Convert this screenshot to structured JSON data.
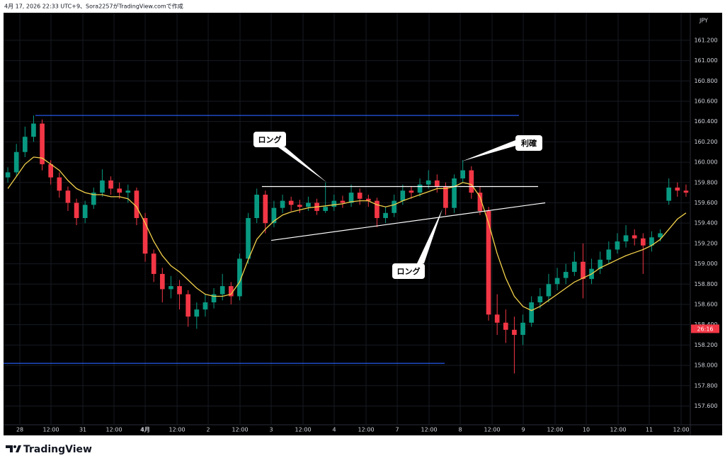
{
  "header": "4月 17, 2026 22:33 UTC+9、Sora2257がTradingView.comで作成",
  "footer": {
    "brand": "TradingView"
  },
  "chart_data": {
    "type": "candlestick",
    "currency": "JPY",
    "countdown": "26:16",
    "countdown_price": 158.36,
    "up_color": "#089981",
    "down_color": "#f23645",
    "grid": true,
    "ylim": [
      157.45,
      161.45
    ],
    "yticks": [
      {
        "value": 157.6,
        "label": "157.600"
      },
      {
        "value": 157.8,
        "label": "157.800"
      },
      {
        "value": 158.0,
        "label": "158.000"
      },
      {
        "value": 158.2,
        "label": "158.200"
      },
      {
        "value": 158.4,
        "label": "158.400"
      },
      {
        "value": 158.6,
        "label": "158.600"
      },
      {
        "value": 158.8,
        "label": "158.800"
      },
      {
        "value": 159.0,
        "label": "159.000"
      },
      {
        "value": 159.2,
        "label": "159.200"
      },
      {
        "value": 159.4,
        "label": "159.400"
      },
      {
        "value": 159.6,
        "label": "159.600"
      },
      {
        "value": 159.8,
        "label": "159.800"
      },
      {
        "value": 160.0,
        "label": "160.000"
      },
      {
        "value": 160.2,
        "label": "160.200"
      },
      {
        "value": 160.4,
        "label": "160.400"
      },
      {
        "value": 160.6,
        "label": "160.600"
      },
      {
        "value": 160.8,
        "label": "160.800"
      },
      {
        "value": 161.0,
        "label": "161.000"
      },
      {
        "value": 161.2,
        "label": "161.200"
      }
    ],
    "xlim": [
      -0.5,
      79.5
    ],
    "xticks": [
      {
        "value": 1.4,
        "label": "28"
      },
      {
        "value": 5.03,
        "label": "12:00"
      },
      {
        "value": 8.74,
        "label": "31"
      },
      {
        "value": 12.37,
        "label": "12:00"
      },
      {
        "value": 16.0,
        "label": "4月"
      },
      {
        "value": 19.71,
        "label": "12:00"
      },
      {
        "value": 23.34,
        "label": "2"
      },
      {
        "value": 27.05,
        "label": "12:00"
      },
      {
        "value": 30.68,
        "label": "3"
      },
      {
        "value": 34.39,
        "label": "12:00"
      },
      {
        "value": 38.02,
        "label": "4"
      },
      {
        "value": 41.73,
        "label": "12:00"
      },
      {
        "value": 45.36,
        "label": "7"
      },
      {
        "value": 49.07,
        "label": "12:00"
      },
      {
        "value": 52.7,
        "label": "8"
      },
      {
        "value": 56.41,
        "label": "12:00"
      },
      {
        "value": 60.04,
        "label": "9"
      },
      {
        "value": 63.75,
        "label": "12:00"
      },
      {
        "value": 67.38,
        "label": "10"
      },
      {
        "value": 71.09,
        "label": "12:00"
      },
      {
        "value": 74.72,
        "label": "11"
      },
      {
        "value": 78.43,
        "label": "12:00"
      }
    ],
    "open": [
      159.85,
      159.9,
      160.1,
      160.25,
      160.38,
      159.98,
      159.85,
      159.72,
      159.6,
      159.45,
      159.58,
      159.7,
      159.82,
      159.74,
      159.7,
      159.72,
      159.45,
      159.1,
      158.9,
      158.75,
      158.78,
      158.7,
      158.48,
      158.55,
      158.62,
      158.7,
      158.78,
      158.68,
      159.05,
      159.45,
      159.68,
      159.4,
      159.55,
      159.62,
      159.58,
      159.56,
      159.6,
      159.52,
      159.56,
      159.62,
      159.6,
      159.7,
      159.64,
      159.62,
      159.45,
      159.5,
      159.62,
      159.72,
      159.7,
      159.78,
      159.82,
      159.76,
      159.55,
      159.84,
      159.92,
      159.7,
      159.52,
      158.5,
      158.42,
      158.35,
      158.3,
      158.42,
      158.62,
      158.68,
      158.8,
      158.86,
      158.92,
      159.02,
      158.85,
      158.95,
      159.04,
      159.14,
      159.22,
      159.28,
      159.25,
      159.18,
      159.26,
      159.62,
      159.75,
      159.72
    ],
    "high": [
      159.95,
      160.18,
      160.35,
      160.46,
      160.42,
      160.02,
      159.9,
      159.76,
      159.64,
      159.62,
      159.75,
      159.93,
      159.86,
      159.8,
      159.78,
      159.75,
      159.5,
      159.14,
      158.96,
      158.88,
      158.84,
      158.74,
      158.62,
      158.7,
      158.76,
      158.9,
      158.82,
      159.1,
      159.5,
      159.74,
      159.72,
      159.62,
      159.68,
      159.66,
      159.63,
      159.66,
      159.64,
      159.8,
      159.68,
      159.67,
      159.78,
      159.74,
      159.68,
      159.65,
      159.56,
      159.68,
      159.78,
      159.76,
      159.84,
      159.92,
      159.88,
      159.8,
      159.88,
      160.02,
      159.96,
      159.76,
      159.56,
      158.7,
      158.55,
      158.48,
      158.5,
      158.68,
      158.76,
      158.9,
      158.96,
      159.0,
      159.12,
      159.2,
      159.05,
      159.12,
      159.22,
      159.3,
      159.38,
      159.34,
      159.3,
      159.32,
      159.34,
      159.84,
      159.8,
      159.78
    ],
    "low": [
      159.8,
      159.86,
      160.05,
      160.2,
      159.92,
      159.78,
      159.65,
      159.52,
      159.38,
      159.4,
      159.54,
      159.66,
      159.68,
      159.64,
      159.6,
      159.38,
      159.02,
      158.82,
      158.62,
      158.66,
      158.55,
      158.38,
      158.36,
      158.48,
      158.56,
      158.64,
      158.6,
      158.64,
      159.0,
      159.4,
      159.3,
      159.36,
      159.5,
      159.52,
      159.5,
      159.52,
      159.48,
      159.5,
      159.52,
      159.55,
      159.56,
      159.58,
      159.56,
      159.36,
      159.4,
      159.46,
      159.58,
      159.64,
      159.66,
      159.74,
      159.7,
      159.48,
      159.5,
      159.8,
      159.64,
      159.48,
      158.44,
      158.3,
      158.22,
      157.92,
      158.2,
      158.38,
      158.56,
      158.62,
      158.74,
      158.8,
      158.88,
      158.66,
      158.8,
      158.9,
      159.0,
      159.1,
      159.16,
      159.18,
      158.9,
      159.12,
      159.22,
      159.58,
      159.66,
      159.66
    ],
    "close": [
      159.9,
      160.1,
      160.25,
      160.38,
      159.98,
      159.85,
      159.72,
      159.6,
      159.45,
      159.58,
      159.7,
      159.82,
      159.74,
      159.7,
      159.72,
      159.45,
      159.1,
      158.9,
      158.75,
      158.78,
      158.7,
      158.48,
      158.55,
      158.62,
      158.7,
      158.78,
      158.68,
      159.05,
      159.45,
      159.68,
      159.4,
      159.55,
      159.62,
      159.58,
      159.56,
      159.6,
      159.52,
      159.56,
      159.62,
      159.6,
      159.7,
      159.64,
      159.62,
      159.45,
      159.5,
      159.62,
      159.72,
      159.7,
      159.78,
      159.82,
      159.76,
      159.55,
      159.84,
      159.92,
      159.7,
      159.52,
      158.5,
      158.42,
      158.35,
      158.3,
      158.42,
      158.62,
      158.68,
      158.8,
      158.86,
      158.92,
      159.02,
      158.85,
      158.95,
      159.04,
      159.14,
      159.22,
      159.28,
      159.25,
      159.18,
      159.26,
      159.3,
      159.75,
      159.72,
      159.7
    ],
    "ma": {
      "color": "#f2d04a",
      "values": [
        159.74,
        159.86,
        159.98,
        160.05,
        160.04,
        159.98,
        159.92,
        159.82,
        159.74,
        159.7,
        159.68,
        159.68,
        159.66,
        159.66,
        159.64,
        159.56,
        159.4,
        159.22,
        159.08,
        158.98,
        158.92,
        158.84,
        158.76,
        158.7,
        158.68,
        158.68,
        158.7,
        158.82,
        159.04,
        159.24,
        159.34,
        159.42,
        159.48,
        159.51,
        159.53,
        159.55,
        159.56,
        159.57,
        159.58,
        159.59,
        159.61,
        159.62,
        159.62,
        159.58,
        159.56,
        159.58,
        159.62,
        159.65,
        159.68,
        159.71,
        159.74,
        159.74,
        159.76,
        159.8,
        159.78,
        159.66,
        159.4,
        159.1,
        158.86,
        158.68,
        158.58,
        158.54,
        158.58,
        158.64,
        158.7,
        158.76,
        158.82,
        158.86,
        158.9,
        158.96,
        159.0,
        159.04,
        159.08,
        159.11,
        159.14,
        159.18,
        159.24,
        159.34,
        159.44,
        159.5
      ]
    },
    "lines": [
      {
        "color": "#2962ff",
        "x": [
          3.21,
          59.54
        ],
        "y": [
          160.46,
          160.46
        ]
      },
      {
        "color": "#2962ff",
        "x": [
          -0.5,
          50.88
        ],
        "y": [
          158.02,
          158.02
        ]
      },
      {
        "color": "#ffffff",
        "x": [
          29.6,
          61.77
        ],
        "y": [
          159.76,
          159.76
        ]
      },
      {
        "color": "#ffffff",
        "x": [
          30.68,
          62.6
        ],
        "y": [
          159.23,
          159.6
        ]
      }
    ],
    "annotations": [
      {
        "text": "ロング"
      },
      {
        "text": "利確"
      },
      {
        "text": "ロング"
      }
    ]
  }
}
